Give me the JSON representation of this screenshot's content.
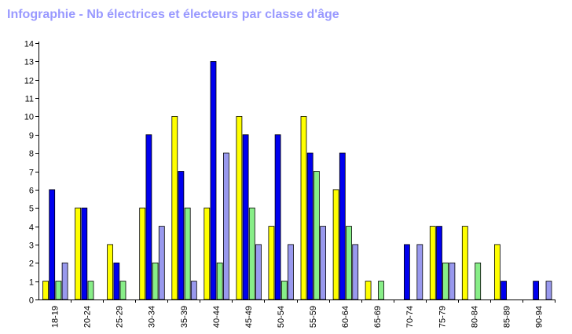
{
  "chart_data": {
    "type": "bar",
    "title": "Infographie - Nb électrices et électeurs par classe d'âge",
    "xlabel": "",
    "ylabel": "",
    "ylim": [
      0,
      14
    ],
    "grid": false,
    "legend": "none",
    "categories": [
      "18-19",
      "20-24",
      "25-29",
      "30-34",
      "35-39",
      "40-44",
      "45-49",
      "50-54",
      "55-59",
      "60-64",
      "65-69",
      "70-74",
      "75-79",
      "80-84",
      "85-89",
      "90-94"
    ],
    "series": [
      {
        "color": "#ffff00",
        "values": [
          1,
          5,
          3,
          5,
          10,
          5,
          10,
          4,
          10,
          6,
          1,
          0,
          4,
          4,
          3,
          0
        ]
      },
      {
        "color": "#0000ee",
        "values": [
          6,
          5,
          2,
          9,
          7,
          13,
          9,
          9,
          8,
          8,
          0,
          3,
          4,
          0,
          1,
          1
        ]
      },
      {
        "color": "#88ee88",
        "values": [
          1,
          1,
          1,
          2,
          5,
          2,
          5,
          1,
          7,
          4,
          1,
          0,
          2,
          2,
          0,
          0
        ]
      },
      {
        "color": "#9999ee",
        "values": [
          2,
          0,
          0,
          4,
          1,
          8,
          3,
          3,
          4,
          3,
          0,
          3,
          2,
          0,
          0,
          1
        ]
      }
    ]
  }
}
